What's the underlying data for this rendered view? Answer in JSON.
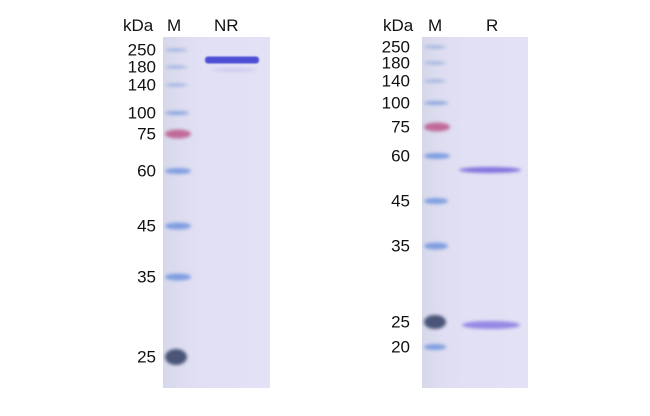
{
  "unit_label": "kDa",
  "gels": [
    {
      "marker_label": "M",
      "sample_label": "NR",
      "markers": [
        "250",
        "180",
        "140",
        "100",
        "75",
        "60",
        "45",
        "35",
        "25"
      ],
      "marker_colors": [
        "#9fb2e0",
        "#9fb2e0",
        "#9fb2e0",
        "#8ea8dc",
        "#c06a98",
        "#7f9ee0",
        "#7f9ee0",
        "#7f9ee0",
        "#4a5578"
      ],
      "sample_bands_kda": [
        "~200"
      ],
      "sample_band_color": "#4d4fd6"
    },
    {
      "marker_label": "M",
      "sample_label": "R",
      "markers": [
        "250",
        "180",
        "140",
        "100",
        "75",
        "60",
        "45",
        "35",
        "25",
        "20"
      ],
      "marker_colors": [
        "#9fb2e0",
        "#9fb2e0",
        "#9fb2e0",
        "#8ea8dc",
        "#c06a98",
        "#7f9ee0",
        "#7f9ee0",
        "#7f9ee0",
        "#4a5578",
        "#7f9ee0"
      ],
      "sample_bands_kda": [
        "~55",
        "~25"
      ],
      "sample_band_color": "#8a7ee0"
    }
  ]
}
